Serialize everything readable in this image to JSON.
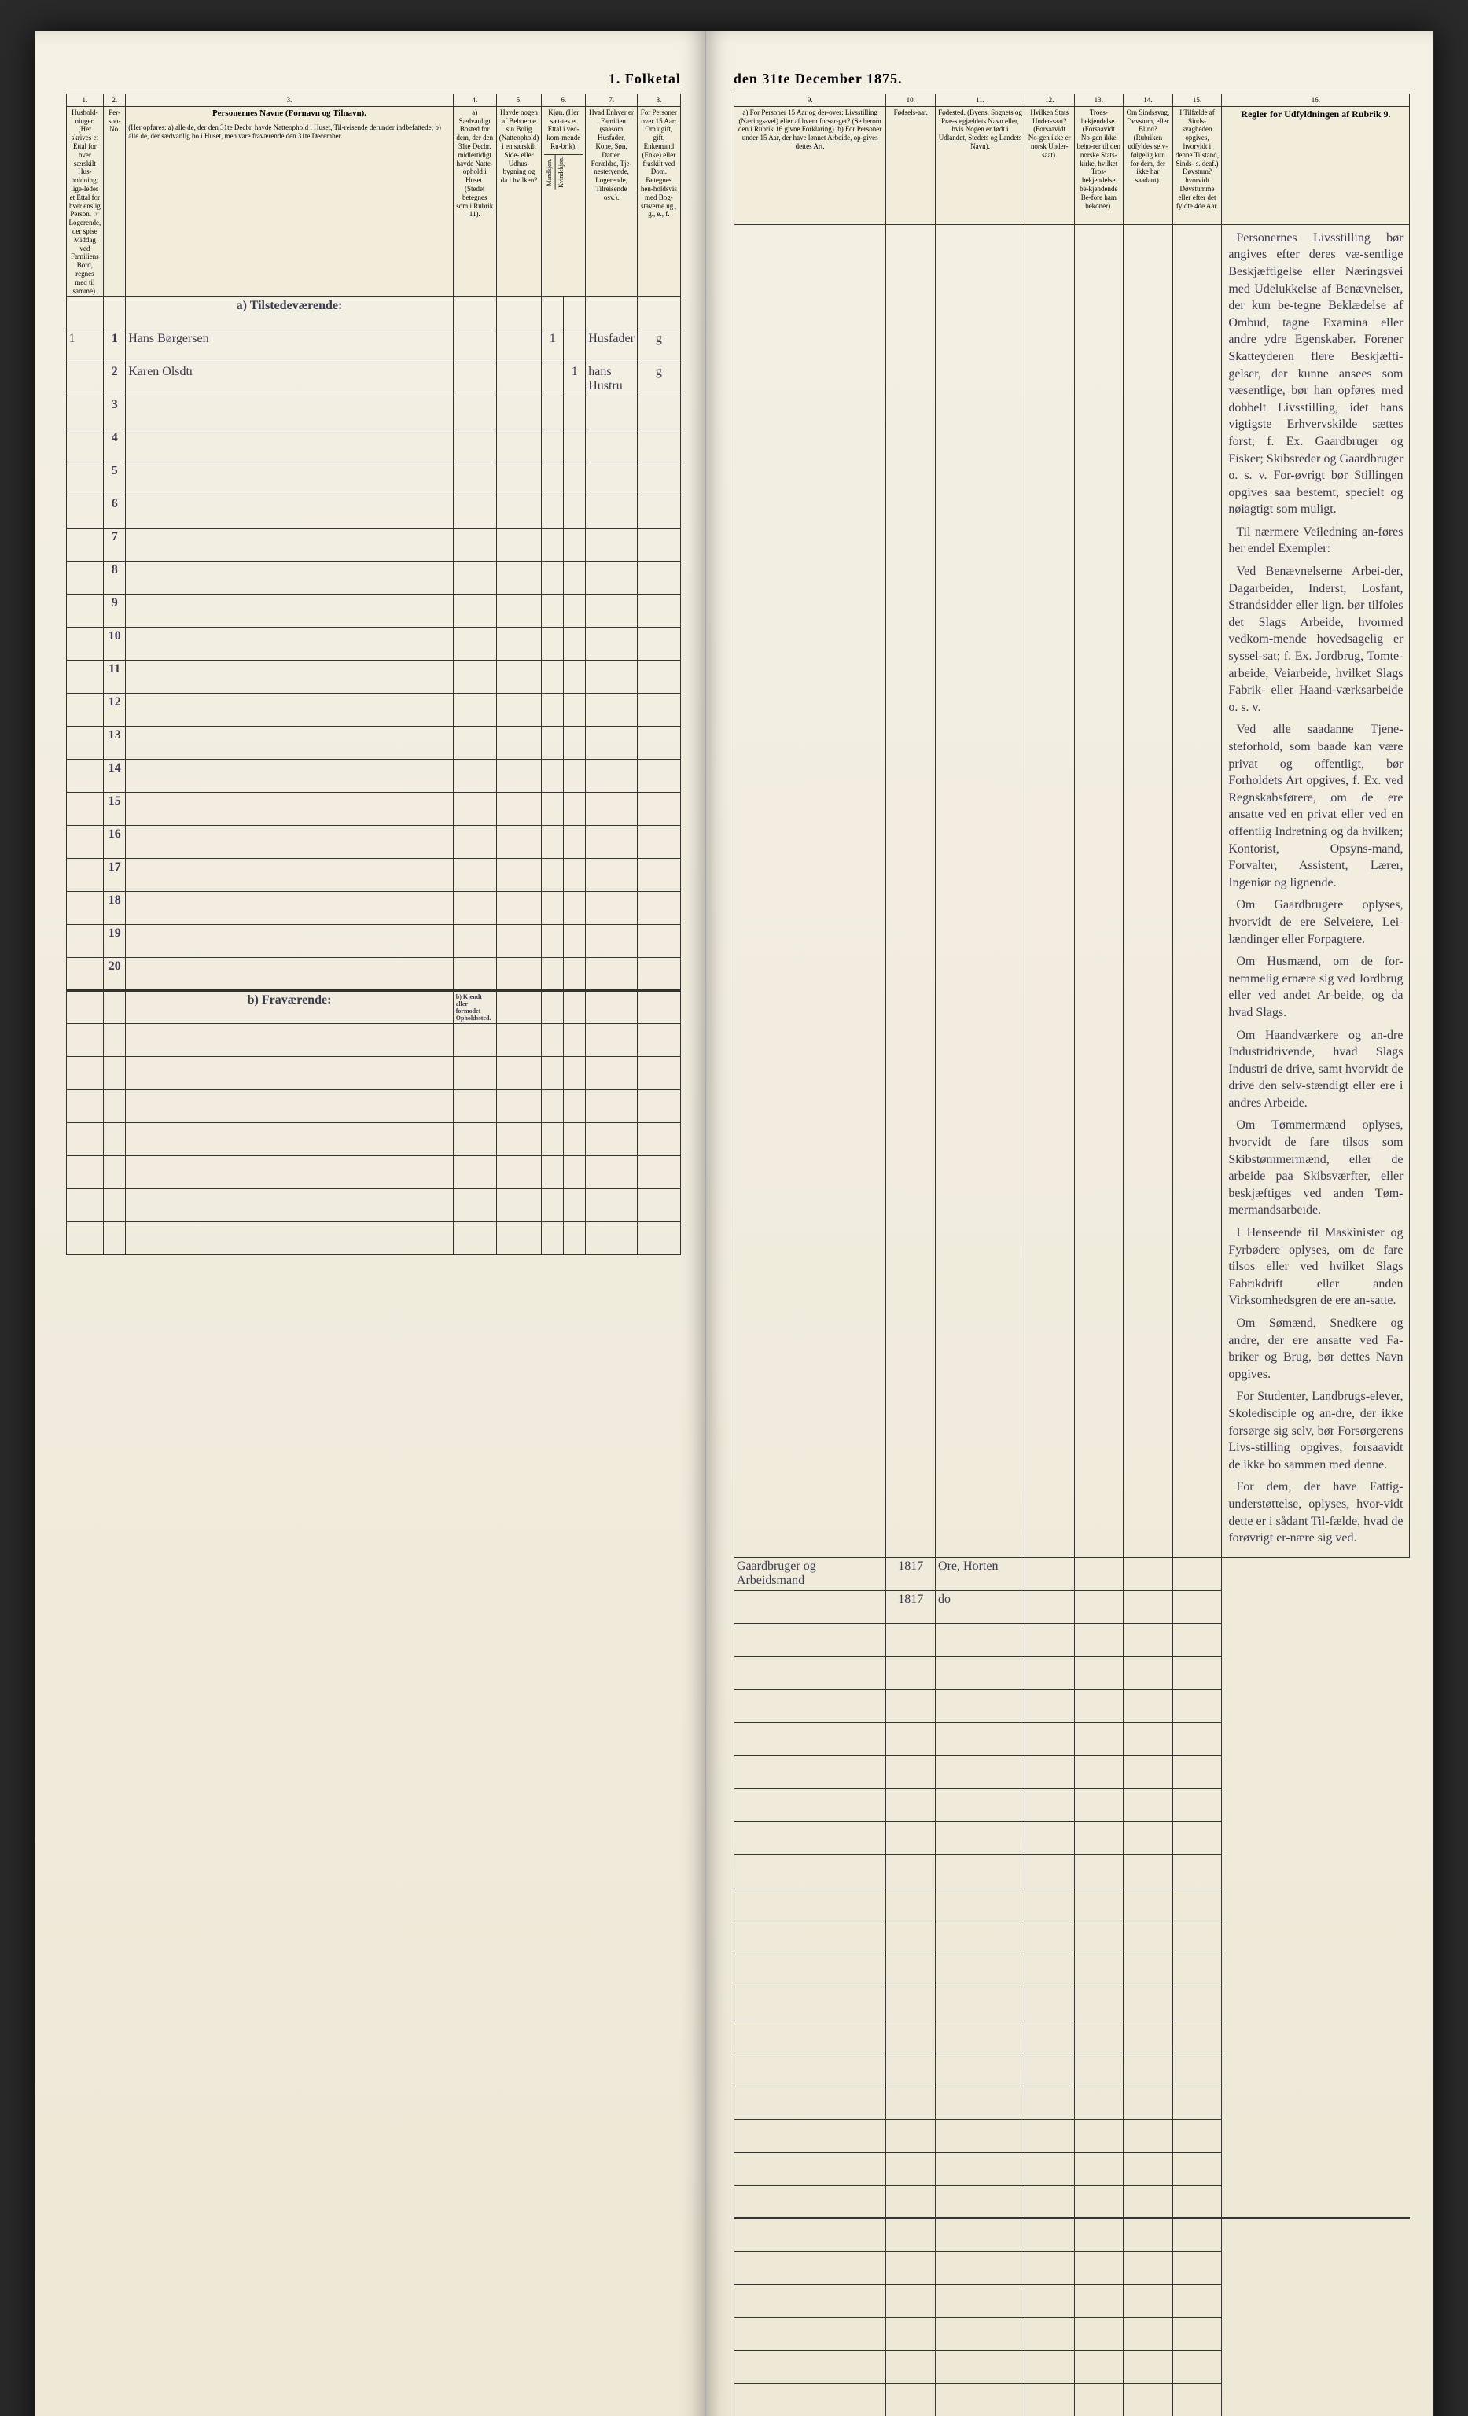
{
  "title_left": "1. Folketal",
  "title_right": "den 31te December 1875.",
  "columns": {
    "c1": "1.",
    "c2": "2.",
    "c3": "3.",
    "c4": "4.",
    "c5": "5.",
    "c6": "6.",
    "c7": "7.",
    "c8": "8.",
    "c9": "9.",
    "c10": "10.",
    "c11": "11.",
    "c12": "12.",
    "c13": "13.",
    "c14": "14.",
    "c15": "15.",
    "c16": "16."
  },
  "headers": {
    "h1": "Hushold-ninger.\n(Her skrives et Ettal for hver særskilt Hus-holdning; lige-ledes et Ettal for hver enslig Person.\n☞ Logerende, der spise Middag ved Familiens Bord, regnes med til samme).",
    "h2": "Per-son-No.",
    "h3_title": "Personernes Navne (Fornavn og Tilnavn).",
    "h3_sub": "(Her opføres:\na) alle de, der den 31te Decbr. havde Natteophold i Huset, Til-reisende derunder indbefattede;\nb) alle de, der sædvanlig bo i Huset, men vare fraværende den 31te December.",
    "h4": "a) Sædvanligt Bosted for dem, der den 31te Decbr. midlertidigt havde Natte-ophold i Huset. (Stedet betegnes som i Rubrik 11).",
    "h5": "Havde nogen af Beboerne sin Bolig (Natteophold) i en særskilt Side- eller Udhus-bygning og da i hvilken?",
    "h6": "Kjøn.\n(Her sæt-tes et Ettal i ved-kom-mende Ru-brik).",
    "h6a": "Mandkjøn.",
    "h6b": "Kvindekjøn.",
    "h7": "Hvad Enhver er i Familien\n(saasom Husfader, Kone, Søn, Datter, Forældre, Tje-nestetyende, Logerende, Tilreisende osv.).",
    "h8": "For Personer over 15 Aar: Om ugift, gift, Enkemand (Enke) eller fraskilt ved Dom.\nBetegnes hen-holdsvis med Bog-staverne ug., g., e., f.",
    "h9": "a) For Personer 15 Aar og der-over: Livsstilling (Nærings-vei) eller af hvem forsør-get? (Se herom den i Rubrik 16 givne Forklaring).\nb) For Personer under 15 Aar, der have lønnet Arbeide, op-gives dettes Art.",
    "h10": "Fødsels-aar.",
    "h11": "Fødested.\n(Byens, Sognets og Præ-stegjældets Navn eller, hvis Nogen er født i Udlandet, Stedets og Landets Navn).",
    "h12": "Hvilken Stats Under-saat?\n(Forsaavidt No-gen ikke er norsk Under-saat).",
    "h13": "Troes-bekjendelse.\n(Forsaavidt No-gen ikke beho-rer til den norske Stats-kirke, hvilket Tros-bekjendelse be-kjendende Be-fore ham bekoner).",
    "h14": "Om Sindssvag, Døvstum, eller Blind?\n(Rubriken udfyldes selv-følgelig kun for dem, der ikke har saadant).",
    "h15": "I Tilfælde af Sinds-svagheden opgives, hvorvidt i denne Tilstand, Sinds- s. deaf.)\nDøvstum? hvorvidt Døvstumme eller efter det fyldte 4de Aar.",
    "h16_title": "Regler for Udfyldningen\naf\nRubrik 9."
  },
  "section_a": "a) Tilstedeværende:",
  "section_b": "b) Fraværende:",
  "section_b4": "b) Kjendt eller formodet Opholdssted.",
  "rows": [
    {
      "n": "1",
      "name": "Hans Børgersen",
      "c6a": "1",
      "c7": "Husfader",
      "c8": "g",
      "c9": "Gaardbruger og Arbeidsmand",
      "c10": "1817",
      "c11": "Ore, Horten"
    },
    {
      "n": "2",
      "name": "Karen Olsdtr",
      "c6b": "1",
      "c7": "hans Hustru",
      "c8": "g",
      "c9": "",
      "c10": "1817",
      "c11": "do"
    },
    {
      "n": "3"
    },
    {
      "n": "4"
    },
    {
      "n": "5"
    },
    {
      "n": "6"
    },
    {
      "n": "7"
    },
    {
      "n": "8"
    },
    {
      "n": "9"
    },
    {
      "n": "10"
    },
    {
      "n": "11"
    },
    {
      "n": "12"
    },
    {
      "n": "13"
    },
    {
      "n": "14"
    },
    {
      "n": "15"
    },
    {
      "n": "16"
    },
    {
      "n": "17"
    },
    {
      "n": "18"
    },
    {
      "n": "19"
    },
    {
      "n": "20"
    }
  ],
  "bottom_rows": [
    {
      "n": ""
    },
    {
      "n": ""
    },
    {
      "n": ""
    },
    {
      "n": ""
    },
    {
      "n": ""
    },
    {
      "n": ""
    },
    {
      "n": ""
    }
  ],
  "rules_text": {
    "p1": "Personernes Livsstilling bør angives efter deres væ-sentlige Beskjæftigelse eller Næringsvei med Udelukkelse af Benævnelser, der kun be-tegne Beklædelse af Ombud, tagne Examina eller andre ydre Egenskaber. Forener Skatteyderen flere Beskjæfti-gelser, der kunne ansees som væsentlige, bør han opføres med dobbelt Livsstilling, idet hans vigtigste Erhvervskilde sættes forst; f. Ex. Gaardbruger og Fisker; Skibsreder og Gaardbruger o. s. v. For-øvrigt bør Stillingen opgives saa bestemt, specielt og nøiagtigt som muligt.",
    "p2": "Til nærmere Veiledning an-føres her endel Exempler:",
    "p3": "Ved Benævnelserne Arbei-der, Dagarbeider, Inderst, Losfant, Strandsidder eller lign. bør tilfoies det Slags Arbeide, hvormed vedkom-mende hovedsagelig er syssel-sat; f. Ex. Jordbrug, Tomte-arbeide, Veiarbeide, hvilket Slags Fabrik- eller Haand-værksarbeide o. s. v.",
    "p4": "Ved alle saadanne Tjene-steforhold, som baade kan være privat og offentligt, bør Forholdets Art opgives, f. Ex. ved Regnskabsførere, om de ere ansatte ved en privat eller ved en offentlig Indretning og da hvilken; Kontorist, Opsyns-mand, Forvalter, Assistent, Lærer, Ingeniør og lignende.",
    "p5": "Om Gaardbrugere oplyses, hvorvidt de ere Selveiere, Lei-lændinger eller Forpagtere.",
    "p6": "Om Husmænd, om de for-nemmelig ernære sig ved Jordbrug eller ved andet Ar-beide, og da hvad Slags.",
    "p7": "Om Haandværkere og an-dre Industridrivende, hvad Slags Industri de drive, samt hvorvidt de drive den selv-stændigt eller ere i andres Arbeide.",
    "p8": "Om Tømmermænd oplyses, hvorvidt de fare tilsos som Skibstømmermænd, eller de arbeide paa Skibsværfter, eller beskjæftiges ved anden Tøm-mermandsarbeide.",
    "p9": "I Henseende til Maskinister og Fyrbødere oplyses, om de fare tilsos eller ved hvilket Slags Fabrikdrift eller anden Virksomhedsgren de ere an-satte.",
    "p10": "Om Sømænd, Snedkere og andre, der ere ansatte ved Fa-briker og Brug, bør dettes Navn opgives.",
    "p11": "For Studenter, Landbrugs-elever, Skoledisciple og an-dre, der ikke forsørge sig selv, bør Forsørgerens Livs-stilling opgives, forsaavidt de ikke bo sammen med denne.",
    "p12": "For dem, der have Fattig-understøttelse, oplyses, hvor-vidt dette er i sådant Til-fælde, hvad de forøvrigt er-nære sig ved."
  }
}
